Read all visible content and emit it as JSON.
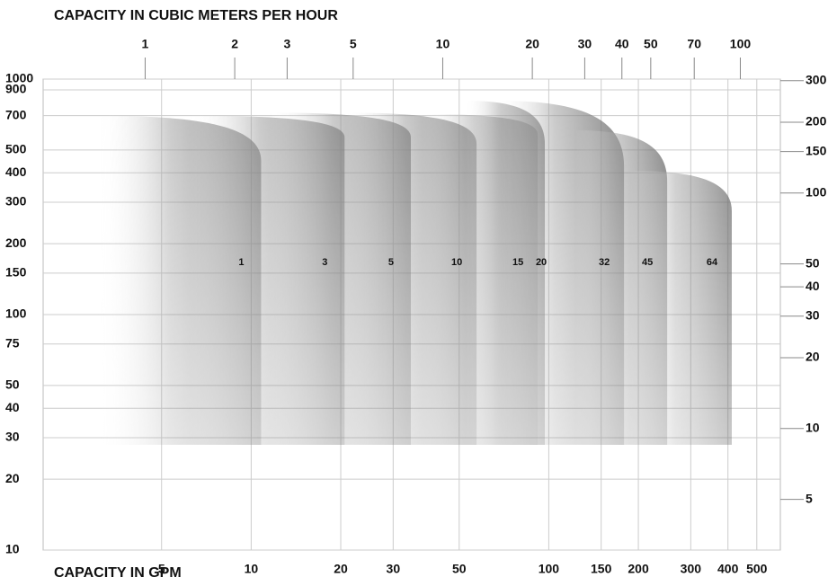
{
  "chart_data": {
    "type": "range",
    "title": "CAPACITY IN CUBIC METERS PER HOUR",
    "xlabel": "CAPACITY IN GPM",
    "log_scale": true,
    "grid": true,
    "xlim": [
      2,
      600
    ],
    "xticks": [
      5,
      10,
      20,
      30,
      50,
      100,
      150,
      200,
      300,
      400,
      500
    ],
    "x2lim": [
      0.4542,
      136.3
    ],
    "x2ticks": [
      1,
      2,
      3,
      5,
      10,
      20,
      30,
      40,
      50,
      70,
      100
    ],
    "ylim": [
      10,
      1000
    ],
    "yticks": [
      10,
      20,
      30,
      40,
      50,
      75,
      100,
      150,
      200,
      300,
      400,
      500,
      700,
      900,
      1000
    ],
    "y2lim": [
      3.048,
      304.8
    ],
    "y2ticks": [
      5,
      10,
      20,
      30,
      40,
      50,
      100,
      150,
      200,
      300
    ],
    "color": "#707070",
    "min_head": 28,
    "series": [
      {
        "name": "1",
        "gpm": [
          3.03,
          10.8
        ],
        "head": [
          700,
          450
        ]
      },
      {
        "name": "3",
        "gpm": [
          6.2,
          20.6
        ],
        "head": [
          700,
          565
        ]
      },
      {
        "name": "5",
        "gpm": [
          11.5,
          34.4
        ],
        "head": [
          720,
          565
        ]
      },
      {
        "name": "10",
        "gpm": [
          20.8,
          57.2
        ],
        "head": [
          720,
          530
        ]
      },
      {
        "name": "15",
        "gpm": [
          37.7,
          91.8
        ],
        "head": [
          710,
          580
        ]
      },
      {
        "name": "20",
        "gpm": [
          52.3,
          97
        ],
        "head": [
          810,
          530
        ]
      },
      {
        "name": "32",
        "gpm": [
          67.1,
          179
        ],
        "head": [
          810,
          426
        ]
      },
      {
        "name": "45",
        "gpm": [
          123,
          250
        ],
        "head": [
          606,
          367
        ]
      },
      {
        "name": "64",
        "gpm": [
          187,
          412
        ],
        "head": [
          408,
          275
        ]
      }
    ]
  }
}
